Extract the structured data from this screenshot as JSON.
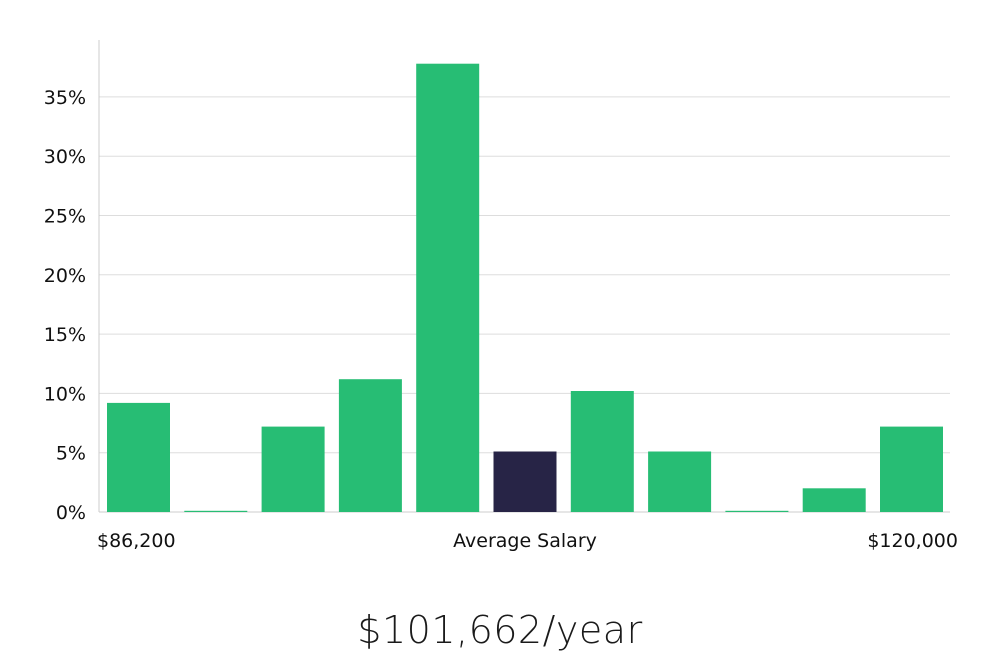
{
  "chart_data": {
    "type": "bar",
    "title": "",
    "xlabel": "Average Salary",
    "ylabel": "",
    "x_min_label": "$86,200",
    "x_max_label": "$120,000",
    "ylim": [
      0,
      40
    ],
    "yticks": [
      0,
      5,
      10,
      15,
      20,
      25,
      30,
      35
    ],
    "ytick_labels": [
      "0%",
      "5%",
      "10%",
      "15%",
      "20%",
      "25%",
      "30%",
      "35%"
    ],
    "grid": true,
    "values": [
      9.2,
      0.1,
      7.2,
      11.2,
      37.8,
      5.1,
      10.2,
      5.1,
      0.1,
      2.0,
      7.2
    ],
    "highlight_index": 5
  },
  "colors": {
    "bar": "#27bd74",
    "highlight": "#272446",
    "grid": "#dddddd",
    "axis": "#cccccc"
  },
  "summary": {
    "average_salary": "$101,662/year"
  }
}
